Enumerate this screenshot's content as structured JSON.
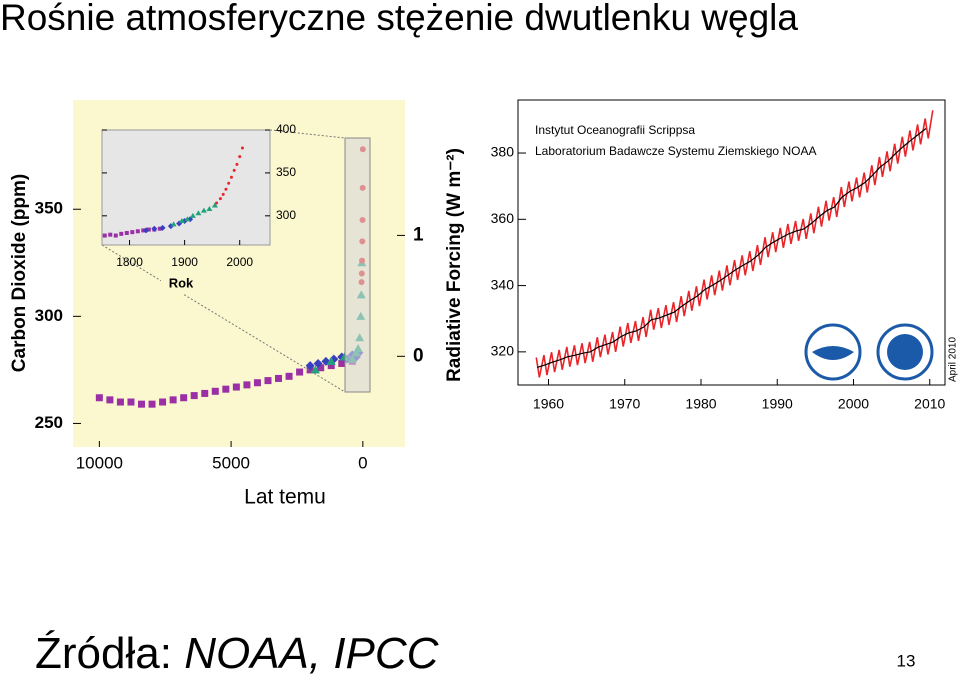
{
  "title": "Rośnie atmosferyczne stężenie dwutlenku węgla",
  "chart_data": [
    {
      "type": "scatter",
      "ylabel": "Carbon Dioxide (ppm)",
      "y2label": "Radiative Forcing (W m⁻²)",
      "xlabel": "Lat temu",
      "xlim": [
        11000,
        -1600
      ],
      "xticks": [
        10000,
        5000,
        0
      ],
      "ylim": [
        239,
        401
      ],
      "yticks": [
        250,
        300,
        350
      ],
      "y2lim": [
        -0.75,
        2.12
      ],
      "y2ticks": [
        0,
        1
      ],
      "series": [
        {
          "color": "#9b2fa6",
          "x": [
            10000,
            9600,
            9200,
            8800,
            8400,
            8000,
            7600,
            7200,
            6800,
            6400,
            6000,
            5600,
            5200,
            4800,
            4400,
            4000,
            3600,
            3200,
            2800,
            2400,
            2000,
            1600,
            1200,
            800,
            400
          ],
          "values": [
            262,
            261,
            260,
            260,
            259,
            259,
            260,
            261,
            262,
            263,
            264,
            265,
            266,
            267,
            268,
            269,
            270,
            271,
            272,
            274,
            275,
            276,
            277,
            278,
            279
          ]
        },
        {
          "color": "#3a3fc0",
          "x": [
            2000,
            1700,
            1400,
            1100,
            800,
            600,
            400,
            250,
            150
          ],
          "values": [
            277,
            278,
            279,
            280,
            281,
            280,
            282,
            281,
            283
          ]
        },
        {
          "color": "#1fa37a",
          "x": [
            1800,
            1200,
            700,
            400,
            250,
            180,
            120,
            80,
            60,
            40
          ],
          "values": [
            275,
            279,
            281,
            280,
            283,
            285,
            290,
            300,
            310,
            325
          ]
        },
        {
          "color": "#e8262a",
          "x": [
            50,
            40,
            30,
            20,
            12,
            6,
            0
          ],
          "values": [
            316,
            320,
            326,
            335,
            345,
            360,
            378
          ]
        }
      ]
    },
    {
      "type": "scatter",
      "xlabel": "Rok",
      "xlim": [
        1750,
        2055
      ],
      "xticks": [
        1800,
        1900,
        2000
      ],
      "ylim": [
        266,
        400
      ],
      "yticks": [
        300,
        350,
        400
      ],
      "series": [
        {
          "color": "#9b2fa6",
          "x": [
            1755,
            1765,
            1775,
            1785,
            1795,
            1805,
            1815,
            1825,
            1835,
            1845,
            1855
          ],
          "values": [
            277,
            278,
            277,
            279,
            280,
            281,
            282,
            283,
            284,
            284,
            285
          ]
        },
        {
          "color": "#3a3fc0",
          "x": [
            1830,
            1845,
            1860,
            1875,
            1890,
            1900,
            1910
          ],
          "values": [
            283,
            285,
            286,
            288,
            291,
            294,
            296
          ]
        },
        {
          "color": "#1fa37a",
          "x": [
            1880,
            1895,
            1905,
            1915,
            1925,
            1935,
            1945,
            1955
          ],
          "values": [
            290,
            294,
            296,
            300,
            303,
            306,
            308,
            312
          ]
        },
        {
          "color": "#e8262a",
          "x": [
            1958,
            1965,
            1970,
            1975,
            1980,
            1985,
            1990,
            1995,
            2000,
            2005
          ],
          "values": [
            315,
            320,
            325,
            331,
            338,
            345,
            353,
            360,
            369,
            379
          ]
        }
      ]
    },
    {
      "type": "line",
      "annotations": [
        "Instytut Oceanografii Scrippsa",
        "Laboratorium Badawcze Systemu Ziemskiego NOAA"
      ],
      "date_label": "April 2010",
      "xlim": [
        1956,
        2012
      ],
      "xticks": [
        1960,
        1970,
        1980,
        1990,
        2000,
        2010
      ],
      "ylim": [
        310,
        396
      ],
      "yticks": [
        320,
        340,
        360,
        380
      ],
      "series": [
        {
          "color": "#e8262a",
          "x": [
            1958.4,
            1958.8,
            1959.4,
            1959.8,
            1960.4,
            1960.8,
            1961.4,
            1961.8,
            1962.4,
            1962.8,
            1963.4,
            1963.8,
            1964.4,
            1964.8,
            1965.4,
            1965.8,
            1966.4,
            1966.8,
            1967.4,
            1967.8,
            1968.4,
            1968.8,
            1969.4,
            1969.8,
            1970.4,
            1970.8,
            1971.4,
            1971.8,
            1972.4,
            1972.8,
            1973.4,
            1973.8,
            1974.4,
            1974.8,
            1975.4,
            1975.8,
            1976.4,
            1976.8,
            1977.4,
            1977.8,
            1978.4,
            1978.8,
            1979.4,
            1979.8,
            1980.4,
            1980.8,
            1981.4,
            1981.8,
            1982.4,
            1982.8,
            1983.4,
            1983.8,
            1984.4,
            1984.8,
            1985.4,
            1985.8,
            1986.4,
            1986.8,
            1987.4,
            1987.8,
            1988.4,
            1988.8,
            1989.4,
            1989.8,
            1990.4,
            1990.8,
            1991.4,
            1991.8,
            1992.4,
            1992.8,
            1993.4,
            1993.8,
            1994.4,
            1994.8,
            1995.4,
            1995.8,
            1996.4,
            1996.8,
            1997.4,
            1997.8,
            1998.4,
            1998.8,
            1999.4,
            1999.8,
            2000.4,
            2000.8,
            2001.4,
            2001.8,
            2002.4,
            2002.8,
            2003.4,
            2003.8,
            2004.4,
            2004.8,
            2005.4,
            2005.8,
            2006.4,
            2006.8,
            2007.4,
            2007.8,
            2008.4,
            2008.8,
            2009.4,
            2009.8,
            2010.4
          ],
          "values": [
            318.3,
            312.3,
            319.0,
            313.0,
            319.9,
            313.9,
            320.6,
            314.6,
            321.5,
            315.5,
            322.0,
            316.0,
            322.6,
            316.6,
            323.0,
            317.0,
            324.4,
            318.4,
            325.2,
            319.2,
            326.0,
            320.0,
            327.6,
            321.6,
            328.7,
            322.7,
            329.3,
            323.3,
            330.5,
            324.5,
            332.7,
            326.7,
            333.2,
            327.2,
            334.1,
            328.1,
            335.0,
            329.0,
            336.8,
            330.8,
            338.4,
            332.4,
            339.8,
            333.8,
            341.8,
            335.8,
            343.1,
            337.1,
            344.5,
            338.5,
            346.1,
            340.1,
            347.7,
            341.7,
            349.1,
            343.1,
            350.4,
            344.4,
            352.2,
            346.2,
            354.6,
            348.6,
            356.1,
            350.1,
            357.4,
            351.4,
            358.6,
            352.6,
            359.5,
            353.5,
            360.1,
            354.1,
            361.8,
            355.8,
            363.8,
            357.8,
            365.6,
            359.6,
            366.7,
            360.7,
            369.7,
            363.7,
            371.4,
            365.4,
            372.6,
            366.6,
            374.1,
            368.1,
            376.3,
            370.3,
            378.8,
            372.8,
            380.5,
            374.5,
            382.8,
            376.8,
            384.9,
            378.9,
            386.8,
            380.8,
            388.6,
            382.6,
            390.4,
            384.4,
            392.9
          ]
        },
        {
          "color": "#000000",
          "x": [
            1958.5,
            1959.5,
            1960.5,
            1961.5,
            1962.5,
            1963.5,
            1964.5,
            1965.5,
            1966.5,
            1967.5,
            1968.5,
            1969.5,
            1970.5,
            1971.5,
            1972.5,
            1973.5,
            1974.5,
            1975.5,
            1976.5,
            1977.5,
            1978.5,
            1979.5,
            1980.5,
            1981.5,
            1982.5,
            1983.5,
            1984.5,
            1985.5,
            1986.5,
            1987.5,
            1988.5,
            1989.5,
            1990.5,
            1991.5,
            1992.5,
            1993.5,
            1994.5,
            1995.5,
            1996.5,
            1997.5,
            1998.5,
            1999.5,
            2000.5,
            2001.5,
            2002.5,
            2003.5,
            2004.5,
            2005.5,
            2006.5,
            2007.5,
            2008.5,
            2009.5
          ],
          "values": [
            315.3,
            316.0,
            316.9,
            317.6,
            318.5,
            319.0,
            319.6,
            320.0,
            321.4,
            322.2,
            323.0,
            324.6,
            325.7,
            326.3,
            327.5,
            329.7,
            330.2,
            331.1,
            332.0,
            333.8,
            335.4,
            336.8,
            338.8,
            340.1,
            341.5,
            343.1,
            344.7,
            346.1,
            347.4,
            349.2,
            351.6,
            353.1,
            354.4,
            355.6,
            356.5,
            357.1,
            358.8,
            360.8,
            362.6,
            363.7,
            366.7,
            368.4,
            369.6,
            371.1,
            373.3,
            375.8,
            377.5,
            379.8,
            381.9,
            383.8,
            385.6,
            387.4
          ]
        }
      ]
    }
  ],
  "sources_label": "Źródła:",
  "sources": "NOAA, IPCC",
  "page_number": "13"
}
